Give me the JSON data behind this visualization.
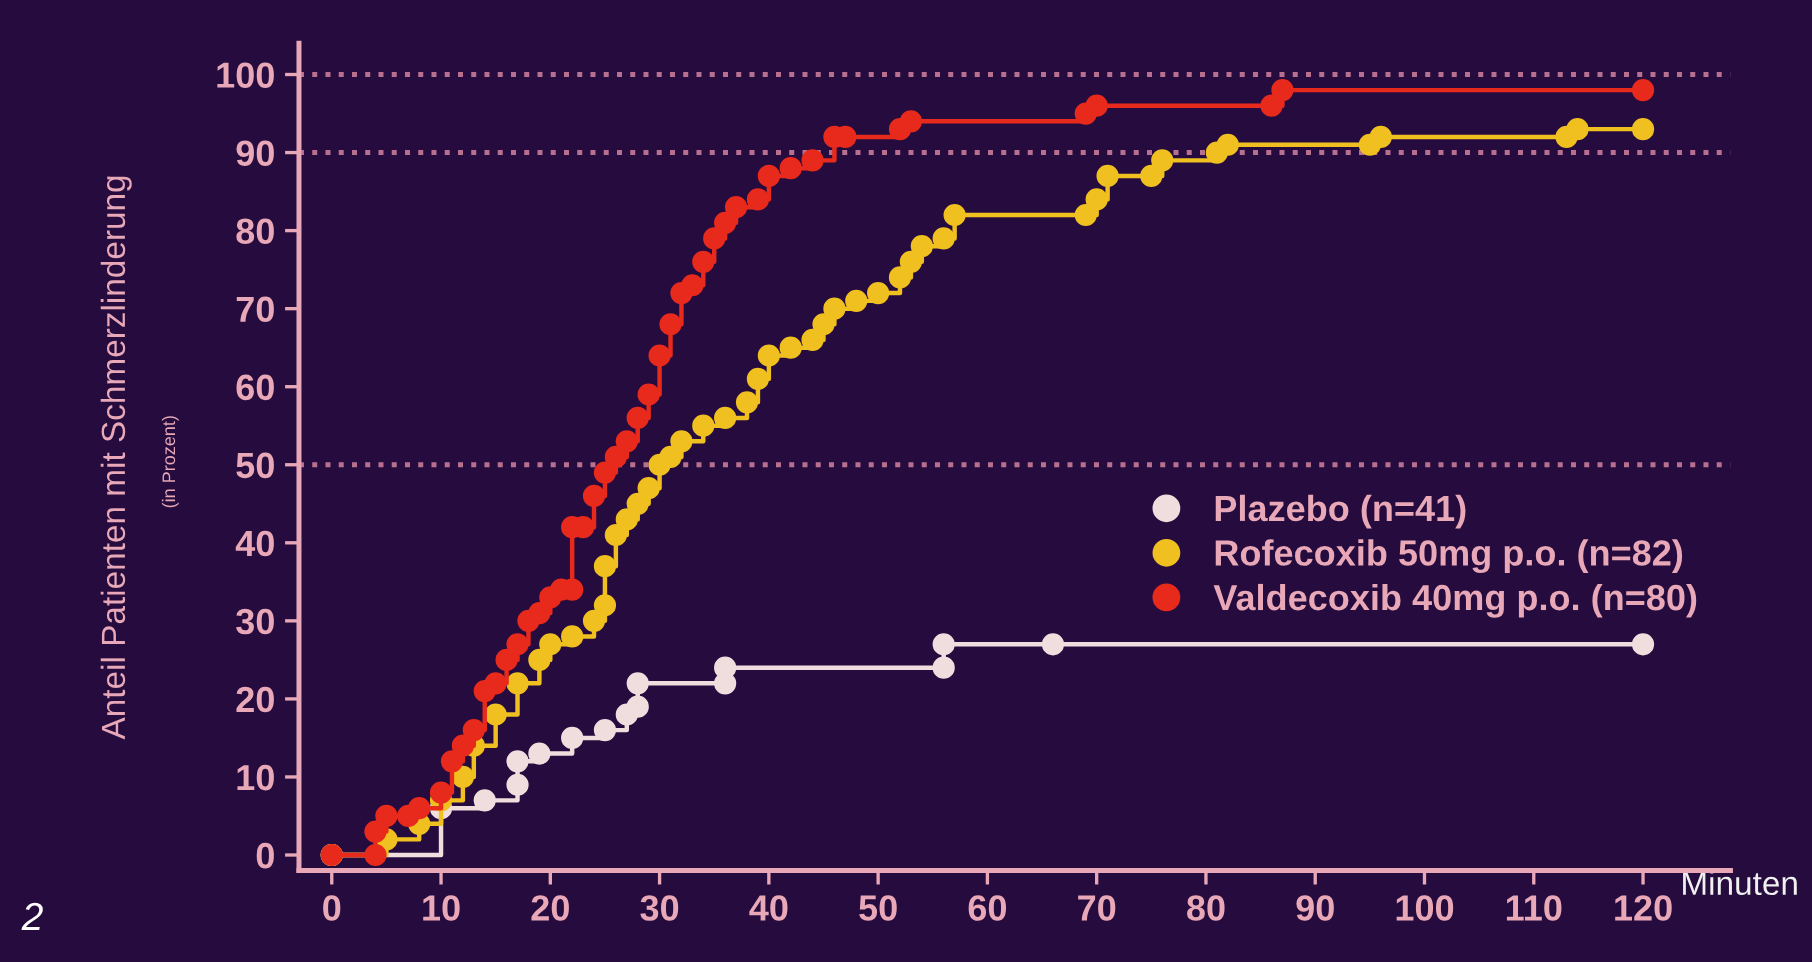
{
  "chart_data": {
    "type": "step",
    "ylabel": "Anteil Patienten mit Schmerzlinderung",
    "xlabel": "Minuten",
    "annotations": [
      "(in Prozent)",
      "2"
    ],
    "xlim": [
      -3,
      128
    ],
    "ylim": [
      -2,
      104
    ],
    "xticks": [
      0,
      10,
      20,
      30,
      40,
      50,
      60,
      70,
      80,
      90,
      100,
      110,
      120
    ],
    "yticks": [
      0,
      10,
      20,
      30,
      40,
      50,
      60,
      70,
      80,
      90,
      100
    ],
    "grid": false,
    "legend": "right",
    "marker": "circle",
    "line_style": "solid",
    "ref_lines": [
      {
        "axis": "y",
        "value": 100,
        "color": "#b87090",
        "line_style": "dotted"
      },
      {
        "axis": "y",
        "value": 90,
        "color": "#b87090",
        "line_style": "dotted"
      },
      {
        "axis": "y",
        "value": 50,
        "color": "#b87090",
        "line_style": "dotted"
      }
    ],
    "series": [
      {
        "name": "Plazebo (n=41)",
        "color": "#f0dede",
        "x": [
          0,
          10,
          14,
          17,
          17,
          19,
          22,
          25,
          27,
          28,
          28,
          36,
          36,
          56,
          56,
          66,
          120
        ],
        "values": [
          0,
          6,
          7,
          9,
          12,
          13,
          15,
          16,
          18,
          19,
          22,
          22,
          24,
          24,
          27,
          27,
          27
        ]
      },
      {
        "name": "Rofecoxib 50mg p.o. (n=82)",
        "color": "#f0c020",
        "x": [
          0,
          5,
          8,
          10,
          12,
          13,
          15,
          17,
          19,
          20,
          22,
          24,
          25,
          25,
          26,
          27,
          28,
          29,
          30,
          31,
          32,
          34,
          36,
          38,
          39,
          40,
          42,
          44,
          45,
          46,
          48,
          50,
          52,
          53,
          54,
          56,
          57,
          69,
          70,
          71,
          75,
          76,
          81,
          82,
          95,
          96,
          113,
          114,
          120
        ],
        "values": [
          0,
          2,
          4,
          7,
          10,
          14,
          18,
          22,
          25,
          27,
          28,
          30,
          32,
          37,
          41,
          43,
          45,
          47,
          50,
          51,
          53,
          55,
          56,
          58,
          61,
          64,
          65,
          66,
          68,
          70,
          71,
          72,
          74,
          76,
          78,
          79,
          82,
          82,
          84,
          87,
          87,
          89,
          90,
          91,
          91,
          92,
          92,
          93,
          93
        ]
      },
      {
        "name": "Valdecoxib 40mg p.o. (n=80)",
        "color": "#e82a1c",
        "x": [
          0,
          4,
          4,
          5,
          7,
          8,
          10,
          11,
          12,
          13,
          14,
          15,
          16,
          17,
          18,
          19,
          20,
          21,
          22,
          22,
          23,
          24,
          25,
          26,
          27,
          28,
          29,
          30,
          31,
          32,
          33,
          34,
          35,
          36,
          37,
          39,
          40,
          42,
          44,
          46,
          47,
          52,
          53,
          69,
          70,
          86,
          87,
          120
        ],
        "values": [
          0,
          0,
          3,
          5,
          5,
          6,
          8,
          12,
          14,
          16,
          21,
          22,
          25,
          27,
          30,
          31,
          33,
          34,
          34,
          42,
          42,
          46,
          49,
          51,
          53,
          56,
          59,
          64,
          68,
          72,
          73,
          76,
          79,
          81,
          83,
          84,
          87,
          88,
          89,
          92,
          92,
          93,
          94,
          95,
          96,
          96,
          98,
          98
        ]
      }
    ]
  }
}
